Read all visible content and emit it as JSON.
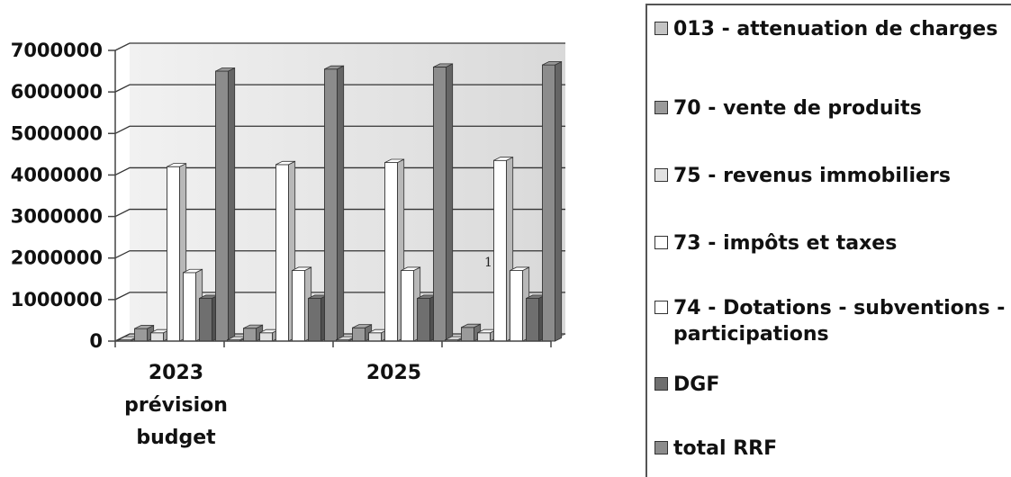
{
  "chart_data": {
    "type": "bar",
    "style": "3d-clustered-column",
    "categories": [
      "2023\nprévision\nbudget",
      "",
      "2025",
      ""
    ],
    "series": [
      {
        "name": "013 - attenuation de charges",
        "color": "#c4c4c4",
        "values": [
          30000,
          30000,
          30000,
          30000
        ]
      },
      {
        "name": "70 -  vente de produits",
        "color": "#9a9a9a",
        "values": [
          300000,
          310000,
          320000,
          330000
        ]
      },
      {
        "name": "75 - revenus immobiliers",
        "color": "#e2e2e2",
        "values": [
          200000,
          200000,
          200000,
          200000
        ]
      },
      {
        "name": "73 - impôts et taxes",
        "color": "#ffffff",
        "values": [
          4200000,
          4250000,
          4300000,
          4350000
        ]
      },
      {
        "name": "74 -  Dotations - subventions - participations",
        "color": "#ffffff",
        "values": [
          1650000,
          1700000,
          1700000,
          1700000
        ]
      },
      {
        "name": "DGF",
        "color": "#6f6f6f",
        "values": [
          1030000,
          1030000,
          1030000,
          1030000
        ]
      },
      {
        "name": "total RRF",
        "color": "#8c8c8c",
        "values": [
          6500000,
          6550000,
          6600000,
          6650000
        ]
      }
    ],
    "ylim": [
      0,
      7000000
    ],
    "yticks": [
      0,
      1000000,
      2000000,
      3000000,
      4000000,
      5000000,
      6000000,
      7000000
    ],
    "grid": true,
    "legend_position": "right",
    "stray_annotation": "1"
  }
}
